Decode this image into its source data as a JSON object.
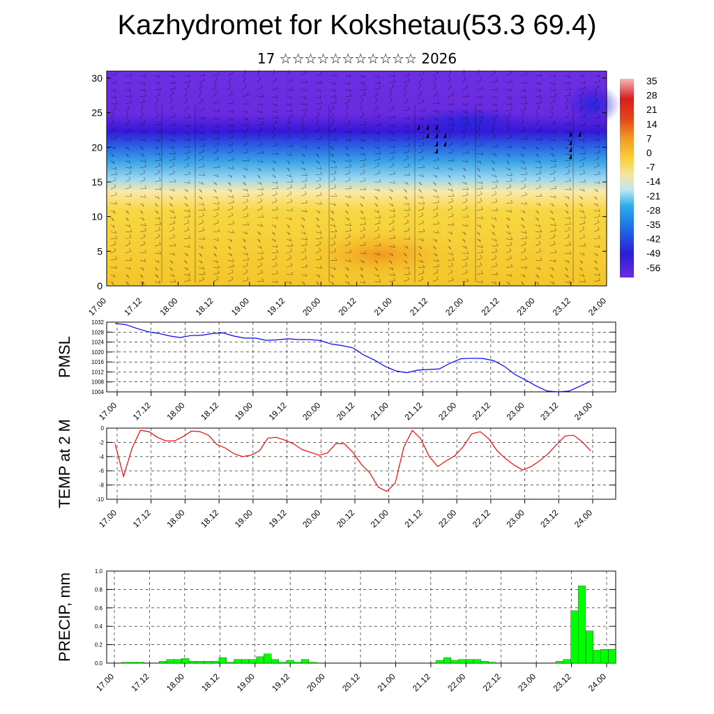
{
  "header": {
    "title": "Kazhydromet for Kokshetau(53.3 69.4)",
    "subtitle": "17 ☆☆☆☆☆☆☆☆☆☆☆ 2026"
  },
  "chart_data": [
    {
      "type": "heatmap",
      "name": "cross-section",
      "x_ticks": [
        "17.00",
        "17.12",
        "18.00",
        "18.12",
        "19.00",
        "19.12",
        "20.00",
        "20.12",
        "21.00",
        "21.12",
        "22.00",
        "22.12",
        "23.00",
        "23.12",
        "24.00"
      ],
      "y_ticks": [
        0,
        5,
        10,
        15,
        20,
        25,
        30
      ],
      "ylim": [
        0,
        31
      ],
      "colorbar_labels": [
        35,
        28,
        21,
        14,
        7,
        0,
        -7,
        -14,
        -21,
        -28,
        -35,
        -42,
        -49,
        -56
      ],
      "colors": {
        "warm": "#f5cf3a",
        "warm_core": "#f39a25",
        "cold_mid": "#39a8e6",
        "cold_top": "#6a2be0",
        "deep": "#2a20d8"
      }
    },
    {
      "type": "line",
      "name": "pmsl",
      "ylabel": "PMSL",
      "ylim": [
        1004,
        1032
      ],
      "y_ticks": [
        1004,
        1008,
        1012,
        1016,
        1020,
        1024,
        1028,
        1032
      ],
      "x_ticks": [
        "17.00",
        "17.12",
        "18.00",
        "18.12",
        "19.00",
        "19.12",
        "20.00",
        "20.12",
        "21.00",
        "21.12",
        "22.00",
        "22.12",
        "23.00",
        "23.12",
        "24.00"
      ],
      "values": [
        1031.5,
        1031,
        1029.5,
        1028.2,
        1027.5,
        1026.5,
        1025.8,
        1026.6,
        1026.7,
        1027.4,
        1027.7,
        1026.4,
        1025.6,
        1025.6,
        1024.7,
        1024.9,
        1025.3,
        1025,
        1025,
        1024.6,
        1023.2,
        1022.6,
        1021.7,
        1018.8,
        1016.8,
        1014.2,
        1012.4,
        1011.7,
        1012.7,
        1013,
        1013.2,
        1015.5,
        1017.3,
        1017.5,
        1017.4,
        1016.6,
        1014.3,
        1011,
        1008.7,
        1006.3,
        1004.3,
        1004,
        1004.3,
        1006.2,
        1008.3
      ],
      "color": "#0000ff"
    },
    {
      "type": "line",
      "name": "temp2m",
      "ylabel": "TEMP at 2 M",
      "ylim": [
        -10,
        0
      ],
      "y_ticks": [
        0,
        -2,
        -4,
        -6,
        -8,
        -10
      ],
      "x_ticks": [
        "17.00",
        "17.12",
        "18.00",
        "18.12",
        "19.00",
        "19.12",
        "20.00",
        "20.12",
        "21.00",
        "21.12",
        "22.00",
        "22.12",
        "23.00",
        "23.12",
        "24.00"
      ],
      "values": [
        -2.2,
        -6.8,
        -2.8,
        -0.3,
        -0.5,
        -1.3,
        -1.8,
        -1.8,
        -1.2,
        -0.4,
        -0.5,
        -1,
        -2.3,
        -2.8,
        -3.6,
        -4,
        -3.8,
        -3.2,
        -1.4,
        -1.3,
        -1.7,
        -2.2,
        -3,
        -3.4,
        -3.8,
        -3.5,
        -2.2,
        -2.2,
        -3.4,
        -5.1,
        -6.3,
        -8.3,
        -8.9,
        -7.7,
        -2.7,
        -0.3,
        -1.5,
        -4,
        -5.4,
        -4.6,
        -3.9,
        -2.6,
        -0.8,
        -0.5,
        -1.5,
        -3.2,
        -4.3,
        -5.2,
        -5.9,
        -5.4,
        -4.6,
        -3.6,
        -2.3,
        -1.1,
        -1,
        -1.9,
        -3.2
      ],
      "color": "#ff0000"
    },
    {
      "type": "bar",
      "name": "precip",
      "ylabel": "PRECIP, mm",
      "ylim": [
        0,
        1.0
      ],
      "y_ticks": [
        "1.0",
        "0.8",
        "0.6",
        "0.4",
        "0.2",
        "0.0"
      ],
      "x_ticks": [
        "17.00",
        "17.12",
        "18.00",
        "18.12",
        "19.00",
        "19.12",
        "20.00",
        "20.12",
        "21.00",
        "21.12",
        "22.00",
        "22.12",
        "23.00",
        "23.12",
        "24.00"
      ],
      "values": [
        0,
        0,
        0.01,
        0.01,
        0.01,
        0,
        0,
        0.02,
        0.04,
        0.04,
        0.05,
        0.02,
        0.02,
        0.02,
        0.02,
        0.06,
        0.01,
        0.04,
        0.04,
        0.04,
        0.07,
        0.1,
        0.04,
        0.01,
        0.03,
        0.01,
        0.04,
        0.01,
        0,
        0,
        0,
        0,
        0,
        0,
        0,
        0,
        0,
        0,
        0,
        0,
        0,
        0,
        0,
        0,
        0.03,
        0.06,
        0.03,
        0.04,
        0.04,
        0.04,
        0.02,
        0.01,
        0,
        0,
        0,
        0,
        0,
        0,
        0,
        0,
        0.02,
        0.04,
        0.57,
        0.84,
        0.35,
        0.14,
        0.15,
        0.15
      ],
      "color": "#00ff00"
    }
  ]
}
